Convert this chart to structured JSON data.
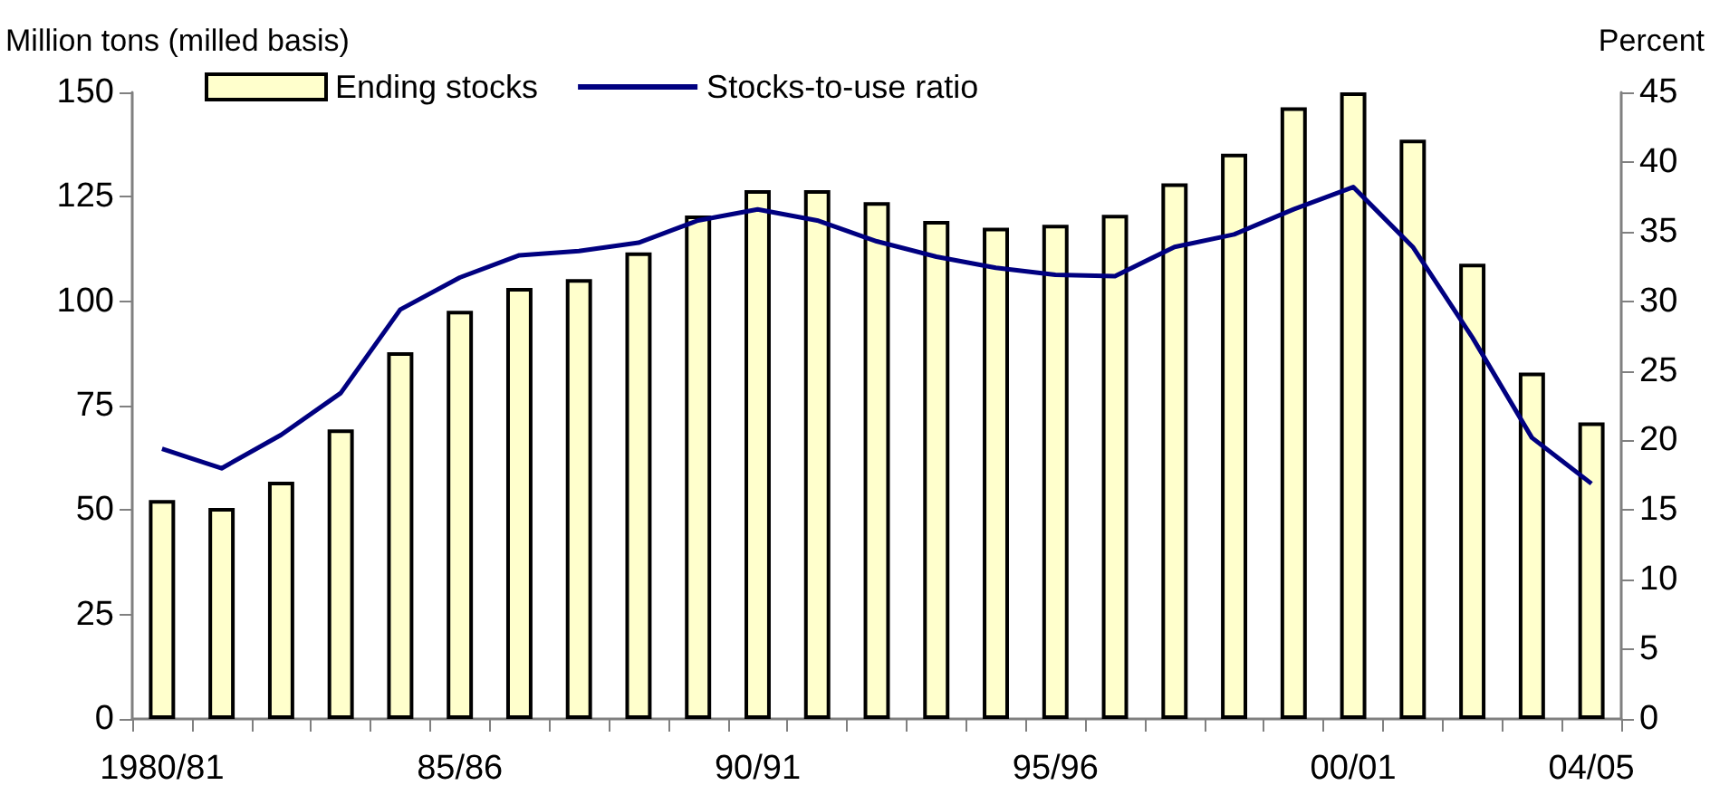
{
  "chart_data": {
    "type": "bar",
    "ylabel": "Million tons (milled basis)",
    "y2label": "Percent",
    "categories": [
      "1980/81",
      null,
      null,
      null,
      null,
      "85/86",
      null,
      null,
      null,
      null,
      "90/91",
      null,
      null,
      null,
      null,
      "95/96",
      null,
      null,
      null,
      null,
      "00/01",
      null,
      null,
      null,
      "04/05"
    ],
    "series": [
      {
        "name": "Ending stocks",
        "color": "#ffffcc",
        "values": [
          52.4,
          50.5,
          56.8,
          69.3,
          87.8,
          97.7,
          103.2,
          105.3,
          111.7,
          120.5,
          126.6,
          126.6,
          123.7,
          119.2,
          117.6,
          118.3,
          120.7,
          128.2,
          135.3,
          146.4,
          150,
          138.7,
          109.0,
          82.9,
          71.0
        ]
      },
      {
        "name": "Stocks-to-use ratio",
        "type": "line",
        "axis": "y2",
        "color": "#000080",
        "values": [
          19.4,
          18.0,
          20.4,
          23.4,
          29.4,
          31.7,
          33.3,
          33.6,
          34.2,
          35.8,
          36.6,
          35.8,
          34.3,
          33.2,
          32.4,
          31.9,
          31.8,
          33.9,
          34.8,
          36.6,
          38.2,
          33.9,
          27.4,
          20.2,
          16.9
        ]
      }
    ],
    "ylim": [
      0,
      150
    ],
    "yticks": [
      0,
      25,
      50,
      75,
      100,
      125,
      150
    ],
    "y2lim": [
      0,
      45
    ],
    "y2ticks": [
      0,
      5,
      10,
      15,
      20,
      25,
      30,
      35,
      40,
      45
    ],
    "grid": false,
    "legend": "top",
    "marker": "none"
  }
}
